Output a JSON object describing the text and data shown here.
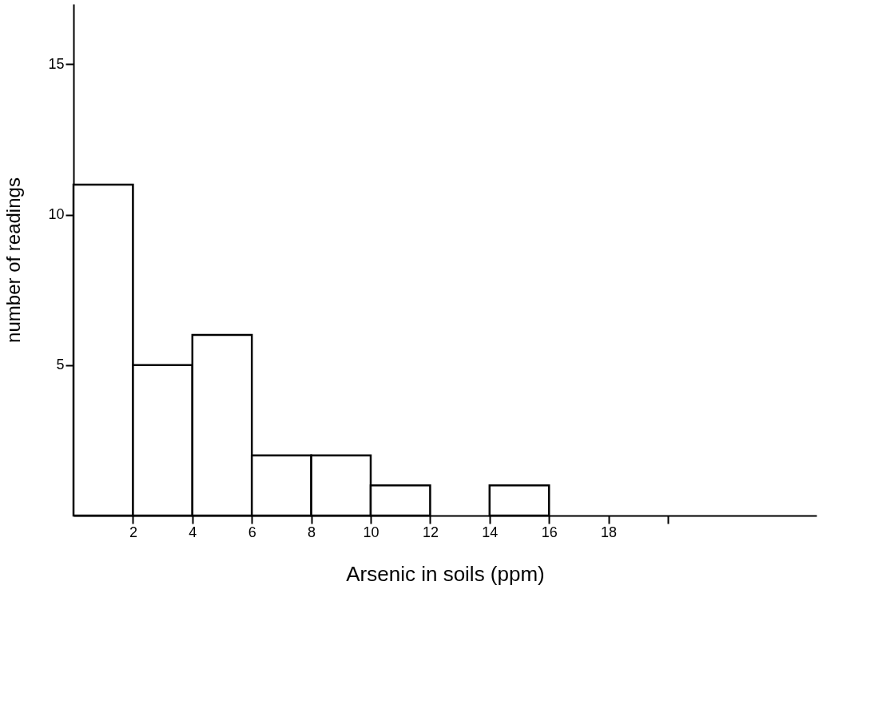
{
  "chart_data": {
    "type": "histogram",
    "xlabel": "Arsenic  in  soils   (ppm)",
    "ylabel": "number  of  readings",
    "bins": [
      0,
      2,
      4,
      6,
      8,
      10,
      12,
      14,
      16
    ],
    "values": [
      11,
      5,
      6,
      2,
      2,
      1,
      0,
      1
    ],
    "color": "#ffffff",
    "xlim": [
      0,
      25
    ],
    "xticks": [
      2,
      4,
      6,
      8,
      10,
      12,
      14,
      16,
      18,
      {
        "value": 20,
        "label": null
      }
    ],
    "ylim": [
      0,
      17
    ],
    "yticks": [
      5,
      10,
      15
    ],
    "grid": false
  }
}
